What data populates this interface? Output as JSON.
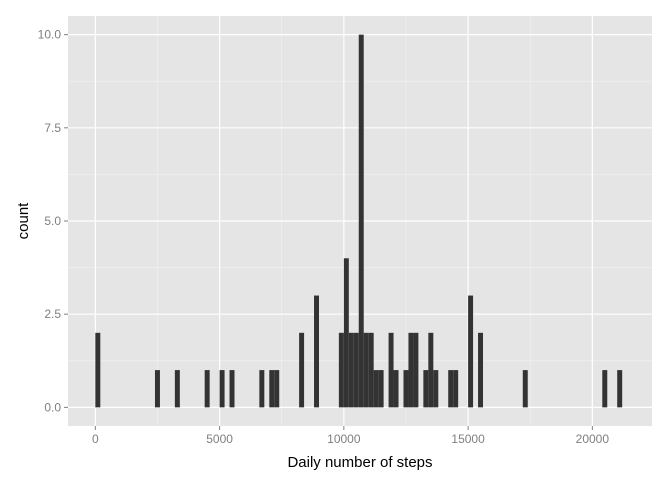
{
  "chart_data": {
    "type": "bar",
    "subtype": "histogram",
    "title": "",
    "xlabel": "Daily number of steps",
    "ylabel": "count",
    "xlim": [
      -1100,
      22400
    ],
    "ylim": [
      -0.5,
      10.5
    ],
    "xticks": [
      0,
      5000,
      10000,
      15000,
      20000
    ],
    "xtick_labels": [
      "0",
      "5000",
      "10000",
      "15000",
      "20000"
    ],
    "yticks": [
      0,
      2.5,
      5,
      7.5,
      10
    ],
    "ytick_labels": [
      "0.0",
      "2.5",
      "5.0",
      "7.5",
      "10.0"
    ],
    "grid": true,
    "bin_width": 200,
    "bins": [
      {
        "x": 100,
        "count": 2
      },
      {
        "x": 2500,
        "count": 1
      },
      {
        "x": 3300,
        "count": 1
      },
      {
        "x": 4500,
        "count": 1
      },
      {
        "x": 5100,
        "count": 1
      },
      {
        "x": 5500,
        "count": 1
      },
      {
        "x": 6700,
        "count": 1
      },
      {
        "x": 7100,
        "count": 1
      },
      {
        "x": 7300,
        "count": 1
      },
      {
        "x": 8300,
        "count": 2
      },
      {
        "x": 8900,
        "count": 3
      },
      {
        "x": 9900,
        "count": 2
      },
      {
        "x": 10100,
        "count": 4
      },
      {
        "x": 10300,
        "count": 2
      },
      {
        "x": 10500,
        "count": 2
      },
      {
        "x": 10700,
        "count": 10
      },
      {
        "x": 10900,
        "count": 2
      },
      {
        "x": 11100,
        "count": 2
      },
      {
        "x": 11300,
        "count": 1
      },
      {
        "x": 11500,
        "count": 1
      },
      {
        "x": 11900,
        "count": 2
      },
      {
        "x": 12100,
        "count": 1
      },
      {
        "x": 12500,
        "count": 1
      },
      {
        "x": 12700,
        "count": 2
      },
      {
        "x": 12900,
        "count": 2
      },
      {
        "x": 13300,
        "count": 1
      },
      {
        "x": 13500,
        "count": 2
      },
      {
        "x": 13700,
        "count": 1
      },
      {
        "x": 14300,
        "count": 1
      },
      {
        "x": 14500,
        "count": 1
      },
      {
        "x": 15100,
        "count": 3
      },
      {
        "x": 15500,
        "count": 2
      },
      {
        "x": 17300,
        "count": 1
      },
      {
        "x": 20500,
        "count": 1
      },
      {
        "x": 21100,
        "count": 1
      }
    ]
  },
  "colors": {
    "panel_background": "#e5e5e5",
    "grid_major": "#ffffff",
    "grid_minor": "#f2f2f2",
    "bar_fill": "#333333",
    "tick_text": "#7f7f7f",
    "axis_title_text": "#000000"
  }
}
